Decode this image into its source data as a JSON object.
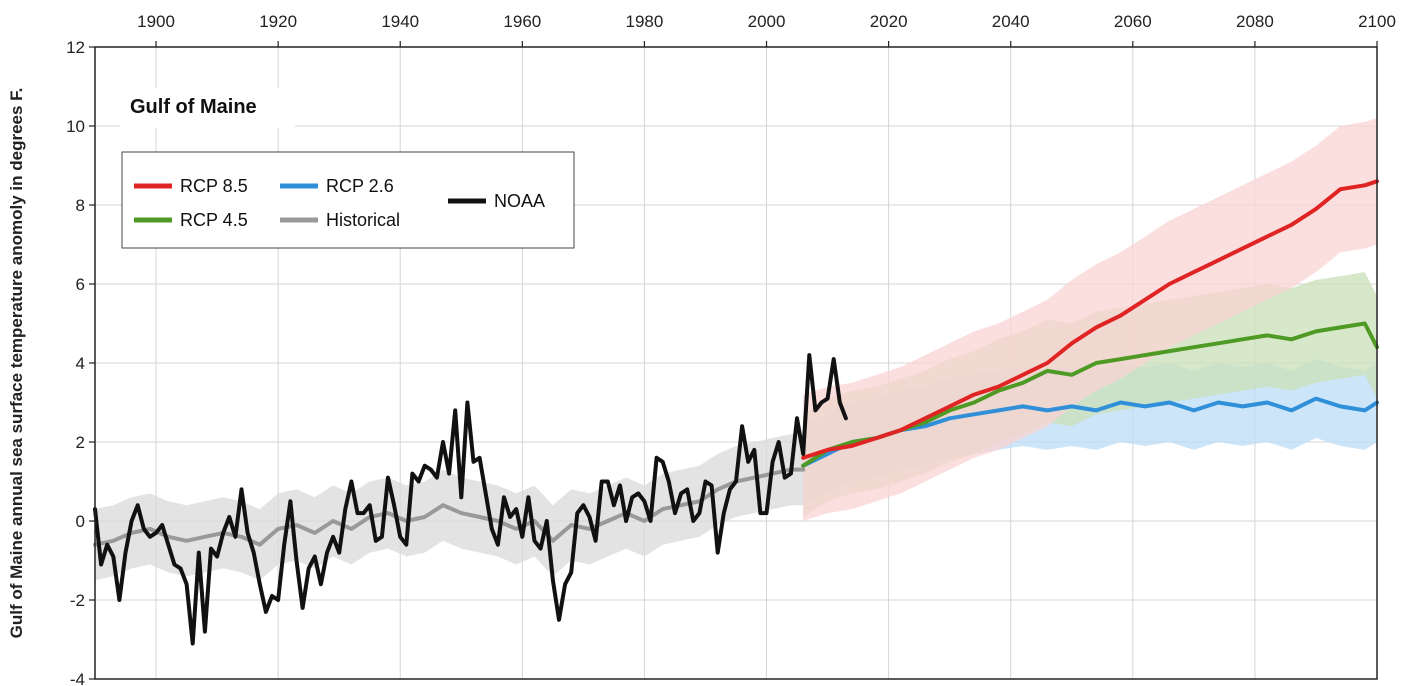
{
  "chart_data": {
    "type": "line",
    "title": "Gulf of Maine",
    "xlabel": "",
    "ylabel": "Gulf of Maine annual sea surface temperature anomoly in degrees F.",
    "xlim": [
      1890,
      2100
    ],
    "ylim": [
      -4,
      12
    ],
    "x_ticks": [
      1900,
      1920,
      1940,
      1960,
      1980,
      2000,
      2020,
      2040,
      2060,
      2080,
      2100
    ],
    "y_ticks": [
      -4,
      -2,
      0,
      2,
      4,
      6,
      8,
      10,
      12
    ],
    "grid": true,
    "legend_position": "top-left",
    "legend": [
      {
        "name": "RCP 8.5",
        "color": "#e02424"
      },
      {
        "name": "RCP 2.6",
        "color": "#2f8fd8"
      },
      {
        "name": "NOAA",
        "color": "#111111"
      },
      {
        "name": "RCP 4.5",
        "color": "#4f9a25"
      },
      {
        "name": "Historical",
        "color": "#999999"
      }
    ],
    "series": [
      {
        "name": "Historical",
        "color": "#999999",
        "band_color": "#d9d9d9",
        "points": [
          [
            1890,
            -0.6
          ],
          [
            1893,
            -0.5
          ],
          [
            1896,
            -0.3
          ],
          [
            1899,
            -0.2
          ],
          [
            1902,
            -0.4
          ],
          [
            1905,
            -0.5
          ],
          [
            1908,
            -0.4
          ],
          [
            1911,
            -0.3
          ],
          [
            1914,
            -0.4
          ],
          [
            1917,
            -0.6
          ],
          [
            1920,
            -0.2
          ],
          [
            1923,
            -0.1
          ],
          [
            1926,
            -0.3
          ],
          [
            1929,
            0.0
          ],
          [
            1932,
            -0.2
          ],
          [
            1935,
            0.1
          ],
          [
            1938,
            0.2
          ],
          [
            1941,
            0.0
          ],
          [
            1944,
            0.1
          ],
          [
            1947,
            0.4
          ],
          [
            1950,
            0.2
          ],
          [
            1953,
            0.1
          ],
          [
            1956,
            0.0
          ],
          [
            1959,
            -0.2
          ],
          [
            1962,
            0.0
          ],
          [
            1965,
            -0.5
          ],
          [
            1968,
            -0.1
          ],
          [
            1971,
            -0.2
          ],
          [
            1974,
            0.0
          ],
          [
            1977,
            0.2
          ],
          [
            1980,
            0.0
          ],
          [
            1983,
            0.3
          ],
          [
            1986,
            0.4
          ],
          [
            1989,
            0.5
          ],
          [
            1992,
            0.8
          ],
          [
            1995,
            1.0
          ],
          [
            1998,
            1.1
          ],
          [
            2001,
            1.2
          ],
          [
            2004,
            1.3
          ],
          [
            2006,
            1.3
          ]
        ],
        "band_half_width": 0.9
      },
      {
        "name": "RCP 2.6",
        "color": "#2f8fd8",
        "band_color": "#bcdcf5",
        "points": [
          [
            2006,
            1.4
          ],
          [
            2010,
            1.7
          ],
          [
            2014,
            2.0
          ],
          [
            2018,
            2.1
          ],
          [
            2022,
            2.3
          ],
          [
            2026,
            2.4
          ],
          [
            2030,
            2.6
          ],
          [
            2034,
            2.7
          ],
          [
            2038,
            2.8
          ],
          [
            2042,
            2.9
          ],
          [
            2046,
            2.8
          ],
          [
            2050,
            2.9
          ],
          [
            2054,
            2.8
          ],
          [
            2058,
            3.0
          ],
          [
            2062,
            2.9
          ],
          [
            2066,
            3.0
          ],
          [
            2070,
            2.8
          ],
          [
            2074,
            3.0
          ],
          [
            2078,
            2.9
          ],
          [
            2082,
            3.0
          ],
          [
            2086,
            2.8
          ],
          [
            2090,
            3.1
          ],
          [
            2094,
            2.9
          ],
          [
            2098,
            2.8
          ],
          [
            2100,
            3.0
          ]
        ],
        "band_half_width": 1.0
      },
      {
        "name": "RCP 4.5",
        "color": "#4f9a25",
        "band_color": "#c9e0b8",
        "points": [
          [
            2006,
            1.4
          ],
          [
            2010,
            1.8
          ],
          [
            2014,
            2.0
          ],
          [
            2018,
            2.1
          ],
          [
            2022,
            2.3
          ],
          [
            2026,
            2.5
          ],
          [
            2030,
            2.8
          ],
          [
            2034,
            3.0
          ],
          [
            2038,
            3.3
          ],
          [
            2042,
            3.5
          ],
          [
            2046,
            3.8
          ],
          [
            2050,
            3.7
          ],
          [
            2054,
            4.0
          ],
          [
            2058,
            4.1
          ],
          [
            2062,
            4.2
          ],
          [
            2066,
            4.3
          ],
          [
            2070,
            4.4
          ],
          [
            2074,
            4.5
          ],
          [
            2078,
            4.6
          ],
          [
            2082,
            4.7
          ],
          [
            2086,
            4.6
          ],
          [
            2090,
            4.8
          ],
          [
            2094,
            4.9
          ],
          [
            2098,
            5.0
          ],
          [
            2100,
            4.4
          ]
        ],
        "band_half_width": 1.3
      },
      {
        "name": "RCP 8.5",
        "color": "#e02424",
        "band_color": "#fad3d3",
        "points": [
          [
            2006,
            1.6
          ],
          [
            2010,
            1.8
          ],
          [
            2014,
            1.9
          ],
          [
            2018,
            2.1
          ],
          [
            2022,
            2.3
          ],
          [
            2026,
            2.6
          ],
          [
            2030,
            2.9
          ],
          [
            2034,
            3.2
          ],
          [
            2038,
            3.4
          ],
          [
            2042,
            3.7
          ],
          [
            2046,
            4.0
          ],
          [
            2050,
            4.5
          ],
          [
            2054,
            4.9
          ],
          [
            2058,
            5.2
          ],
          [
            2062,
            5.6
          ],
          [
            2066,
            6.0
          ],
          [
            2070,
            6.3
          ],
          [
            2074,
            6.6
          ],
          [
            2078,
            6.9
          ],
          [
            2082,
            7.2
          ],
          [
            2086,
            7.5
          ],
          [
            2090,
            7.9
          ],
          [
            2094,
            8.4
          ],
          [
            2098,
            8.5
          ],
          [
            2100,
            8.6
          ]
        ],
        "band_half_width": 1.6
      },
      {
        "name": "NOAA",
        "color": "#111111",
        "points": [
          [
            1890,
            0.3
          ],
          [
            1891,
            -1.1
          ],
          [
            1892,
            -0.6
          ],
          [
            1893,
            -0.9
          ],
          [
            1894,
            -2.0
          ],
          [
            1895,
            -0.8
          ],
          [
            1896,
            0.0
          ],
          [
            1897,
            0.4
          ],
          [
            1898,
            -0.2
          ],
          [
            1899,
            -0.4
          ],
          [
            1900,
            -0.3
          ],
          [
            1901,
            -0.1
          ],
          [
            1902,
            -0.6
          ],
          [
            1903,
            -1.1
          ],
          [
            1904,
            -1.2
          ],
          [
            1905,
            -1.6
          ],
          [
            1906,
            -3.1
          ],
          [
            1907,
            -0.8
          ],
          [
            1908,
            -2.8
          ],
          [
            1909,
            -0.7
          ],
          [
            1910,
            -0.9
          ],
          [
            1911,
            -0.3
          ],
          [
            1912,
            0.1
          ],
          [
            1913,
            -0.4
          ],
          [
            1914,
            0.8
          ],
          [
            1915,
            -0.3
          ],
          [
            1916,
            -0.8
          ],
          [
            1917,
            -1.6
          ],
          [
            1918,
            -2.3
          ],
          [
            1919,
            -1.9
          ],
          [
            1920,
            -2.0
          ],
          [
            1921,
            -0.6
          ],
          [
            1922,
            0.5
          ],
          [
            1923,
            -1.0
          ],
          [
            1924,
            -2.2
          ],
          [
            1925,
            -1.2
          ],
          [
            1926,
            -0.9
          ],
          [
            1927,
            -1.6
          ],
          [
            1928,
            -0.8
          ],
          [
            1929,
            -0.4
          ],
          [
            1930,
            -0.8
          ],
          [
            1931,
            0.3
          ],
          [
            1932,
            1.0
          ],
          [
            1933,
            0.2
          ],
          [
            1934,
            0.2
          ],
          [
            1935,
            0.4
          ],
          [
            1936,
            -0.5
          ],
          [
            1937,
            -0.4
          ],
          [
            1938,
            1.1
          ],
          [
            1939,
            0.4
          ],
          [
            1940,
            -0.4
          ],
          [
            1941,
            -0.6
          ],
          [
            1942,
            1.2
          ],
          [
            1943,
            1.0
          ],
          [
            1944,
            1.4
          ],
          [
            1945,
            1.3
          ],
          [
            1946,
            1.1
          ],
          [
            1947,
            2.0
          ],
          [
            1948,
            1.2
          ],
          [
            1949,
            2.8
          ],
          [
            1950,
            0.6
          ],
          [
            1951,
            3.0
          ],
          [
            1952,
            1.5
          ],
          [
            1953,
            1.6
          ],
          [
            1954,
            0.7
          ],
          [
            1955,
            -0.2
          ],
          [
            1956,
            -0.6
          ],
          [
            1957,
            0.6
          ],
          [
            1958,
            0.1
          ],
          [
            1959,
            0.3
          ],
          [
            1960,
            -0.4
          ],
          [
            1961,
            0.6
          ],
          [
            1962,
            -0.5
          ],
          [
            1963,
            -0.7
          ],
          [
            1964,
            0.0
          ],
          [
            1965,
            -1.5
          ],
          [
            1966,
            -2.5
          ],
          [
            1967,
            -1.6
          ],
          [
            1968,
            -1.3
          ],
          [
            1969,
            0.2
          ],
          [
            1970,
            0.4
          ],
          [
            1971,
            0.1
          ],
          [
            1972,
            -0.5
          ],
          [
            1973,
            1.0
          ],
          [
            1974,
            1.0
          ],
          [
            1975,
            0.4
          ],
          [
            1976,
            0.9
          ],
          [
            1977,
            0.0
          ],
          [
            1978,
            0.6
          ],
          [
            1979,
            0.7
          ],
          [
            1980,
            0.5
          ],
          [
            1981,
            0.0
          ],
          [
            1982,
            1.6
          ],
          [
            1983,
            1.5
          ],
          [
            1984,
            1.0
          ],
          [
            1985,
            0.2
          ],
          [
            1986,
            0.7
          ],
          [
            1987,
            0.8
          ],
          [
            1988,
            0.0
          ],
          [
            1989,
            0.2
          ],
          [
            1990,
            1.0
          ],
          [
            1991,
            0.9
          ],
          [
            1992,
            -0.8
          ],
          [
            1993,
            0.2
          ],
          [
            1994,
            0.8
          ],
          [
            1995,
            1.0
          ],
          [
            1996,
            2.4
          ],
          [
            1997,
            1.5
          ],
          [
            1998,
            1.8
          ],
          [
            1999,
            0.2
          ],
          [
            2000,
            0.2
          ],
          [
            2001,
            1.5
          ],
          [
            2002,
            2.0
          ],
          [
            2003,
            1.1
          ],
          [
            2004,
            1.2
          ],
          [
            2005,
            2.6
          ],
          [
            2006,
            1.7
          ],
          [
            2007,
            4.2
          ],
          [
            2008,
            2.8
          ],
          [
            2009,
            3.0
          ],
          [
            2010,
            3.1
          ],
          [
            2011,
            4.1
          ],
          [
            2012,
            3.0
          ],
          [
            2013,
            2.6
          ]
        ]
      }
    ]
  }
}
